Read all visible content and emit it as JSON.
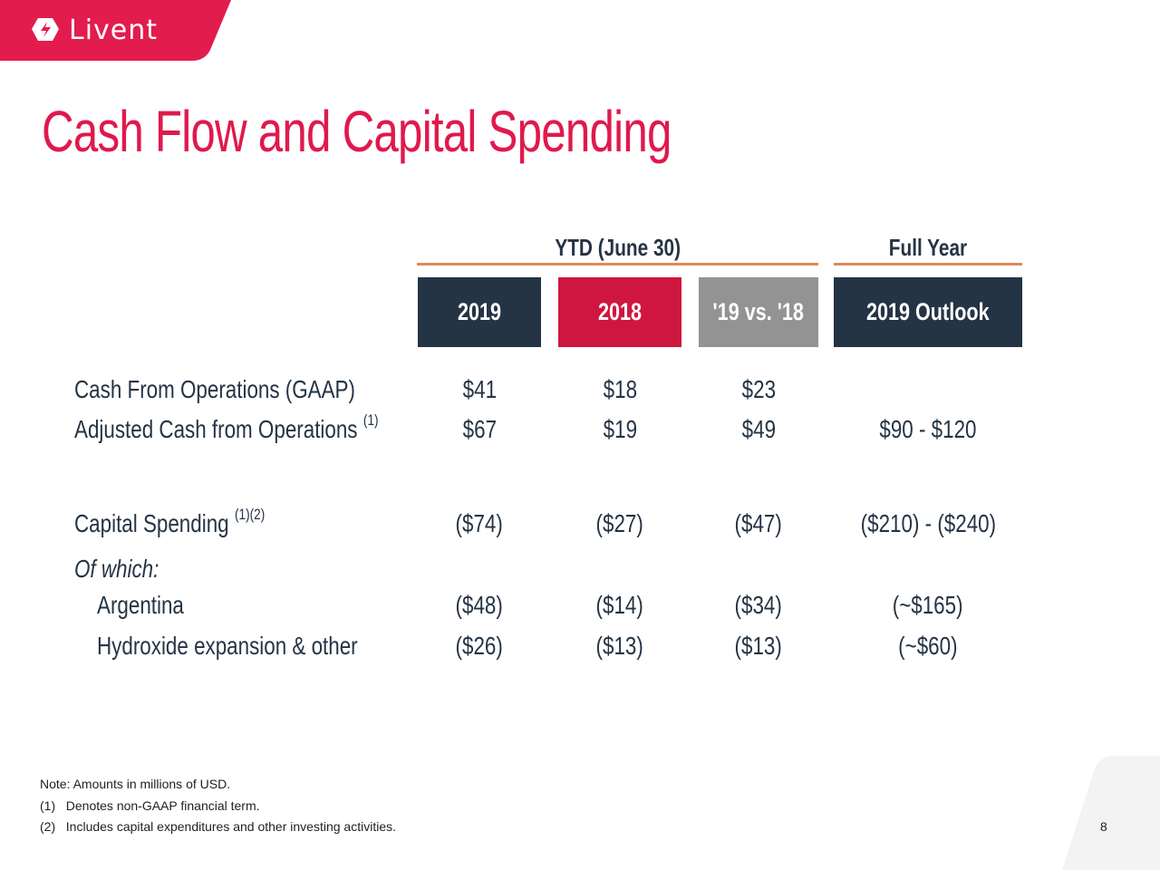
{
  "brand": {
    "name": "Livent",
    "color": "#e31c4e"
  },
  "title": "Cash Flow and Capital Spending",
  "groups": {
    "ytd": "YTD (June 30)",
    "full_year": "Full Year"
  },
  "columns": [
    {
      "label": "2019",
      "color": "#253445"
    },
    {
      "label": "2018",
      "color": "#cf163f"
    },
    {
      "label": "'19 vs. '18",
      "color": "#939393"
    },
    {
      "label": "2019 Outlook",
      "color": "#253445"
    }
  ],
  "rows": [
    {
      "label": "Cash From Operations (GAAP)",
      "note": "",
      "values": [
        "$41",
        "$18",
        "$23",
        ""
      ]
    },
    {
      "label": "Adjusted Cash from Operations",
      "note": "(1)",
      "values": [
        "$67",
        "$19",
        "$49",
        "$90 - $120"
      ]
    },
    {
      "label": "Capital Spending",
      "note": "(1)(2)",
      "values": [
        "($74)",
        "($27)",
        "($47)",
        "($210) - ($240)"
      ]
    },
    {
      "label": "Of which:",
      "note": "",
      "values": [
        "",
        "",
        "",
        ""
      ]
    },
    {
      "label": "Argentina",
      "note": "",
      "values": [
        "($48)",
        "($14)",
        "($34)",
        "(~$165)"
      ]
    },
    {
      "label": "Hydroxide expansion & other",
      "note": "",
      "values": [
        "($26)",
        "($13)",
        "($13)",
        "(~$60)"
      ]
    }
  ],
  "notes": [
    "Note: Amounts in millions of USD.",
    "(1)   Denotes non-GAAP financial term.",
    "(2)   Includes capital expenditures and other investing activities."
  ],
  "page_number": "8"
}
